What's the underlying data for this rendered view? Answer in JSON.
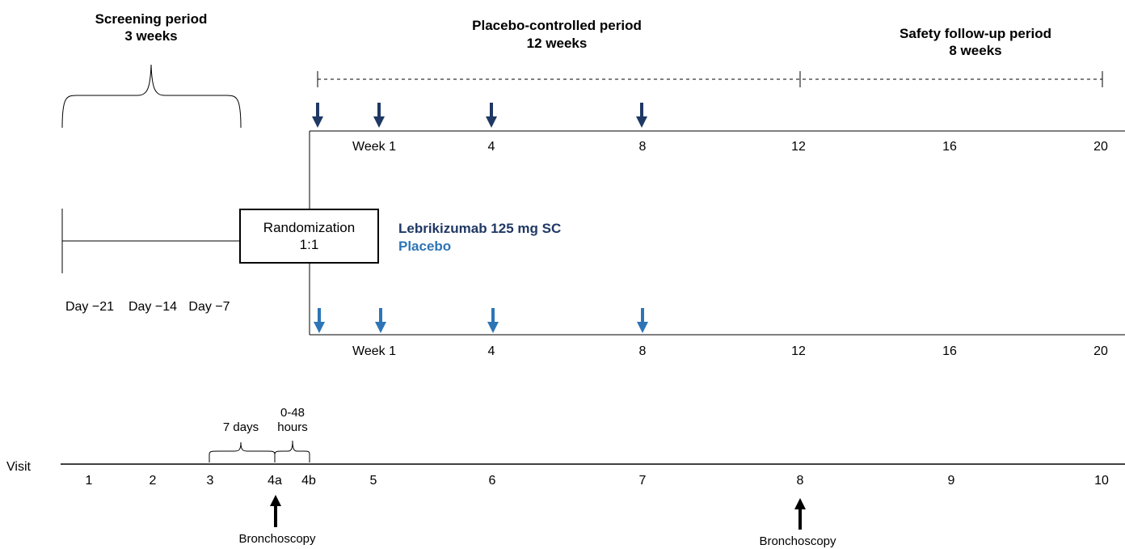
{
  "periods": {
    "screening": {
      "title": "Screening period",
      "duration": "3 weeks"
    },
    "placebo": {
      "title": "Placebo-controlled period",
      "duration": "12 weeks"
    },
    "safety": {
      "title": "Safety follow-up period",
      "duration": "8 weeks"
    }
  },
  "randomization": {
    "line1": "Randomization",
    "line2": "1:1"
  },
  "arms": {
    "drug": {
      "label": "Lebrikizumab 125 mg SC",
      "color": "#1f3864"
    },
    "placebo": {
      "label": "Placebo",
      "color": "#2e75b6"
    }
  },
  "screening_days": [
    "Day −21",
    "Day −14",
    "Day −7"
  ],
  "week_ticks": [
    "Week 1",
    "4",
    "8",
    "12",
    "16",
    "20"
  ],
  "visit": {
    "label": "Visit",
    "numbers": [
      "1",
      "2",
      "3",
      "4a",
      "4b",
      "5",
      "6",
      "7",
      "8",
      "9",
      "10"
    ],
    "gap1": "7 days",
    "gap2_line1": "0-48",
    "gap2_line2": "hours"
  },
  "bronchoscopy": {
    "first": "Bronchoscopy",
    "second": "Bronchoscopy"
  },
  "icons": {
    "dose": "down-arrow-icon",
    "procedure": "up-arrow-icon"
  }
}
